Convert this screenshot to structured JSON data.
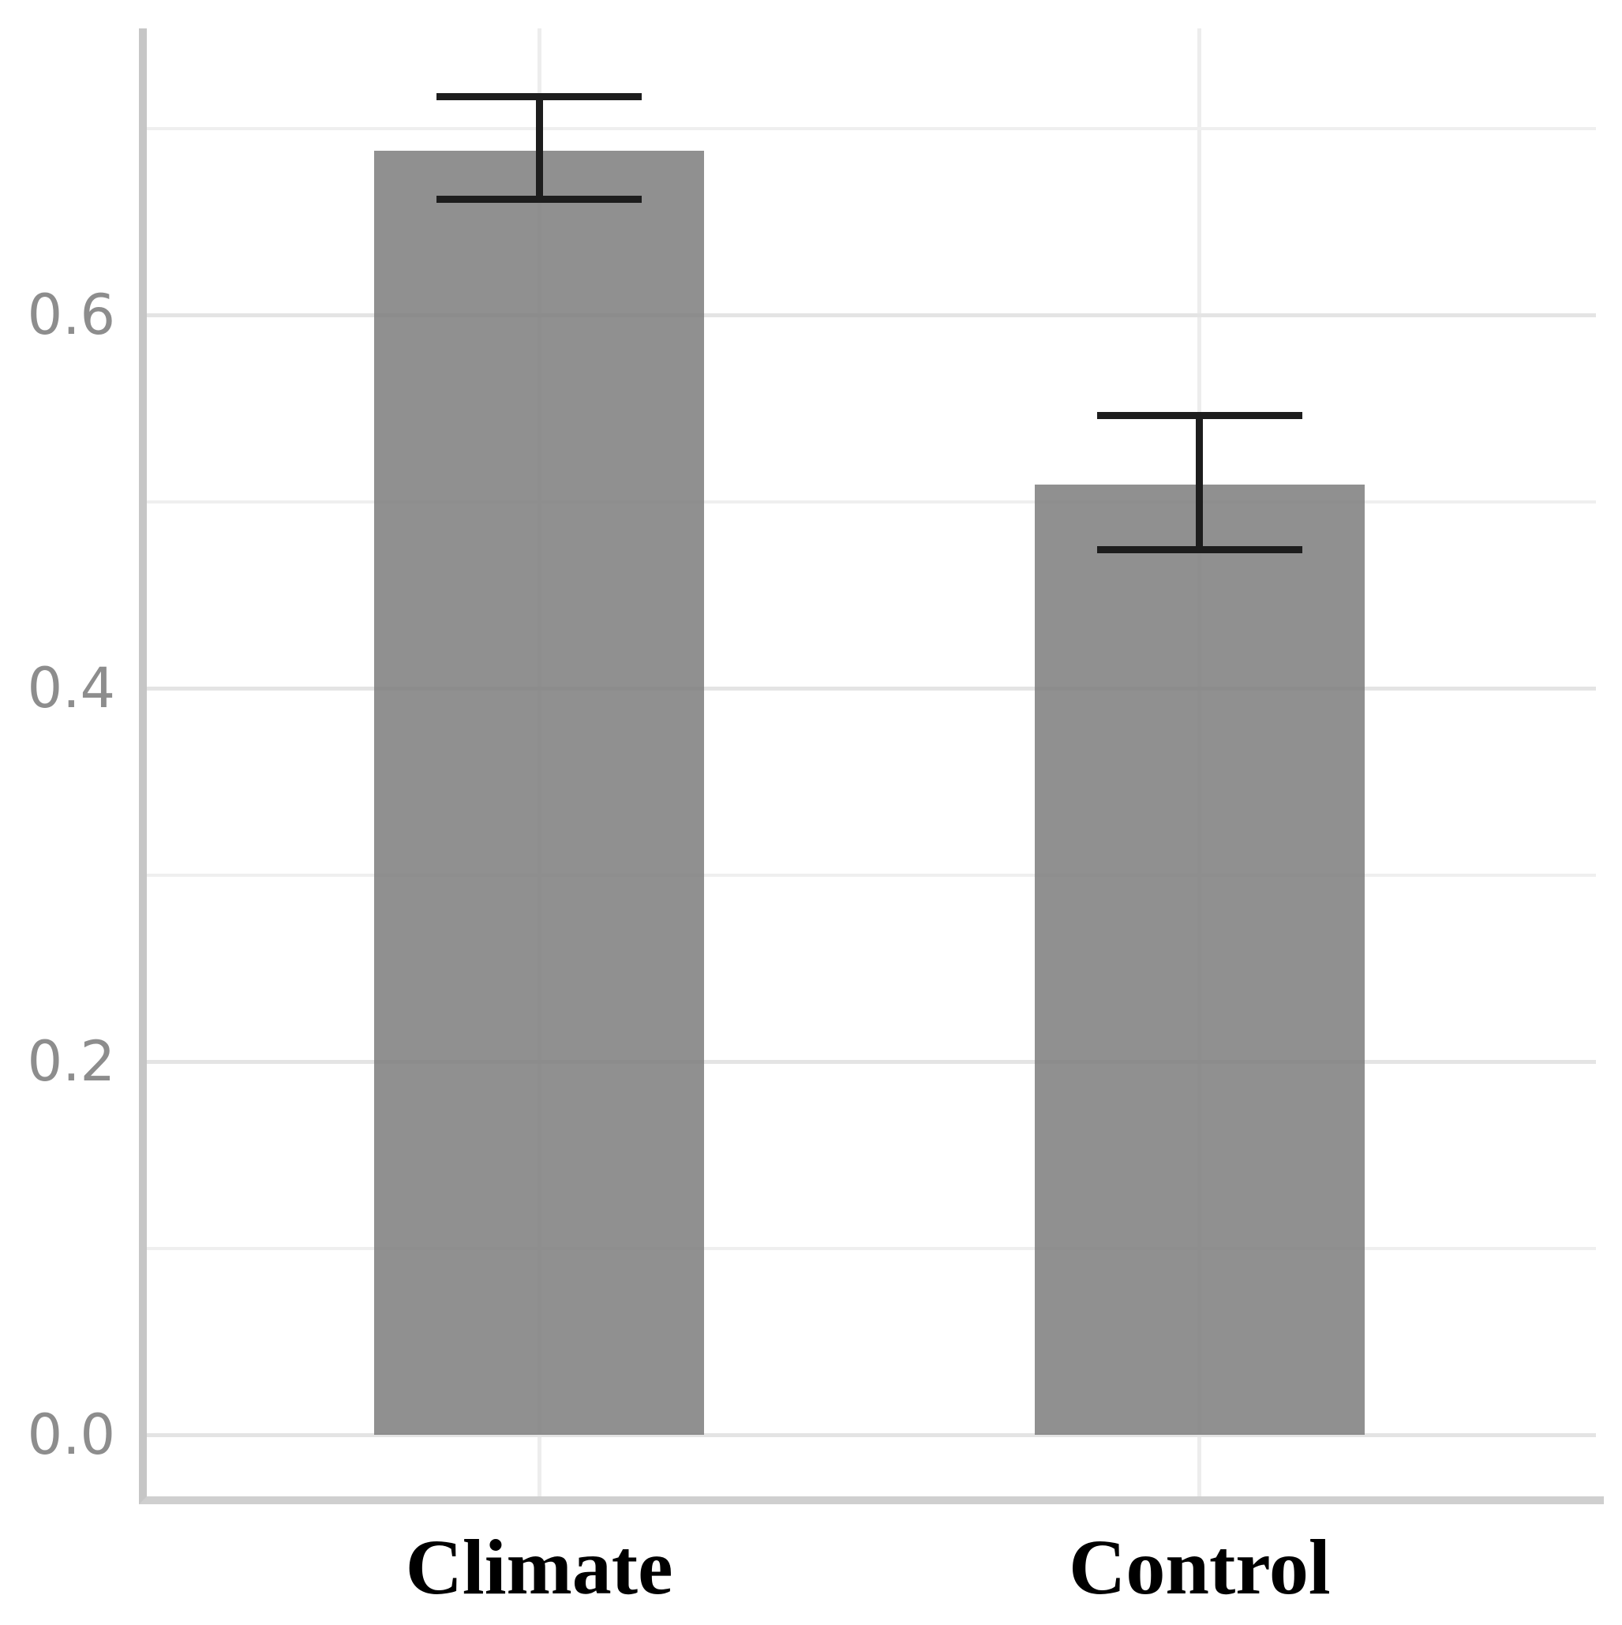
{
  "figure": {
    "background": "#ffffff",
    "title": "",
    "legend": "none"
  },
  "chart_data": {
    "type": "bar",
    "categories": [
      "Climate",
      "Control"
    ],
    "values": [
      0.688,
      0.509
    ],
    "error_low": [
      0.662,
      0.474
    ],
    "error_high": [
      0.717,
      0.546
    ],
    "title": "",
    "xlabel": "",
    "ylabel": "",
    "y_axis": {
      "tick_labels": [
        "0.0",
        "0.2",
        "0.4",
        "0.6"
      ],
      "tick_values": [
        0.0,
        0.2,
        0.4,
        0.6
      ],
      "minor_gridline_values": [
        0.1,
        0.3,
        0.5,
        0.7
      ],
      "ylim": [
        -0.035,
        0.755
      ]
    },
    "x_axis": {
      "category_labels": [
        "Climate",
        "Control"
      ]
    },
    "grid": "horizontal major+minor light gray, one faint vertical gridline per category",
    "error_bars": "black, capped, drawn over bars"
  },
  "colors": {
    "bar_fill": "#929292",
    "errorbar": "#1d1d1d",
    "grid_major": "#e4e4e4",
    "grid_minor": "#efefef",
    "grid_vertical": "#ededed",
    "axis_line_left": "#c6c6c6",
    "axis_line_bottom": "#cfcfcf",
    "y_tick_label": "#8d8d8d",
    "category_label": "#000000"
  }
}
